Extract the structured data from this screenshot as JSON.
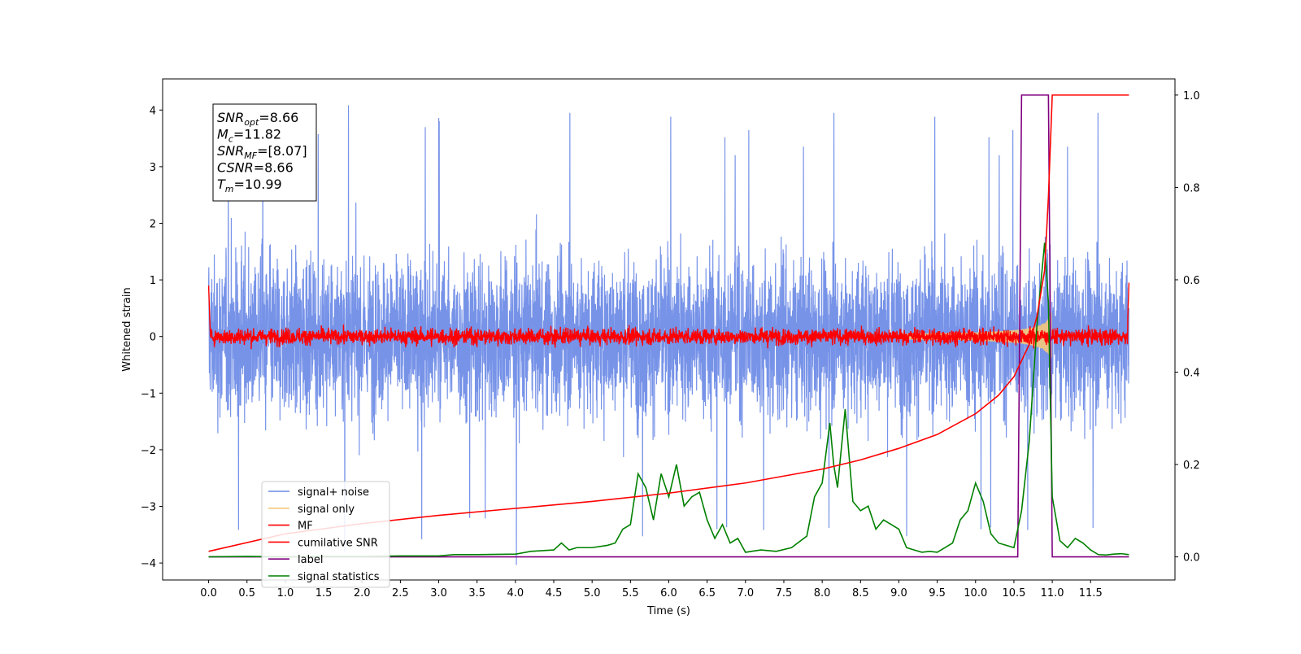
{
  "chart_data": {
    "type": "line",
    "xlabel": "Time (s)",
    "ylabel": "Whitened strain",
    "xlim": [
      -0.6,
      12.6
    ],
    "ylim": [
      -4.3,
      4.55
    ],
    "y2lim": [
      -0.05,
      1.035
    ],
    "x_ticks": [
      "0.0",
      "0.5",
      "1.0",
      "1.5",
      "2.0",
      "2.5",
      "3.0",
      "3.5",
      "4.0",
      "4.5",
      "5.0",
      "5.5",
      "6.0",
      "6.5",
      "7.0",
      "7.5",
      "8.0",
      "8.5",
      "9.0",
      "9.5",
      "10.0",
      "10.5",
      "11.0",
      "11.5"
    ],
    "y_ticks": [
      "4",
      "3",
      "2",
      "1",
      "0",
      "−1",
      "−2",
      "−3",
      "−4"
    ],
    "y2_ticks": [
      "1.0",
      "0.8",
      "0.6",
      "0.4",
      "0.2",
      "0.0"
    ],
    "legend_position": "lower-left",
    "grid": false,
    "annotation": [
      {
        "name": "SNR",
        "sub": "opt",
        "value": "=8.66"
      },
      {
        "name": "M",
        "sub": "c",
        "value": "=11.82"
      },
      {
        "name": "SNR",
        "sub": "MF",
        "value": "=[8.07]"
      },
      {
        "name": "CSNR",
        "sub": "",
        "value": "=8.66"
      },
      {
        "name": "T",
        "sub": "m",
        "value": "=10.99"
      }
    ],
    "series": [
      {
        "name": "signal+ noise",
        "color": "#6b8ae6",
        "axis": "left",
        "description": "noise band spanning approx -2.5 to +2.5, spikes to about 4.2 and -4.0, t from 0 to 12"
      },
      {
        "name": "signal only",
        "color": "#f5c87a",
        "axis": "left",
        "description": "chirp growing from near 0 to amplitude ~0.6 near t=10.95"
      },
      {
        "name": "MF",
        "color": "#ff0000",
        "axis": "left",
        "description": "matched filter output oscillating about 0 within ±0.35"
      },
      {
        "name": "cumilative SNR",
        "color": "#ff0000",
        "axis": "right",
        "x": [
          0.0,
          1.0,
          2.0,
          3.0,
          4.0,
          5.0,
          6.0,
          7.0,
          7.5,
          8.0,
          8.5,
          9.0,
          9.5,
          10.0,
          10.3,
          10.5,
          10.7,
          10.8,
          10.9,
          10.95,
          11.0,
          11.5,
          12.0
        ],
        "values": [
          0.012,
          0.05,
          0.072,
          0.09,
          0.105,
          0.12,
          0.138,
          0.16,
          0.175,
          0.19,
          0.21,
          0.235,
          0.265,
          0.31,
          0.35,
          0.39,
          0.46,
          0.52,
          0.62,
          0.78,
          1.0,
          1.0,
          1.0
        ]
      },
      {
        "name": "label",
        "color": "#800080",
        "axis": "right",
        "x": [
          0.0,
          10.55,
          10.6,
          10.95,
          11.0,
          12.0
        ],
        "values": [
          0.0,
          0.0,
          1.0,
          1.0,
          0.0,
          0.0
        ]
      },
      {
        "name": "signal statistics",
        "color": "#008000",
        "axis": "right",
        "x": [
          0.0,
          0.5,
          1.0,
          1.5,
          2.0,
          2.5,
          3.0,
          3.2,
          3.5,
          4.0,
          4.2,
          4.5,
          4.6,
          4.7,
          4.8,
          5.0,
          5.2,
          5.3,
          5.4,
          5.5,
          5.6,
          5.7,
          5.8,
          5.9,
          6.0,
          6.1,
          6.2,
          6.3,
          6.4,
          6.5,
          6.6,
          6.7,
          6.8,
          6.9,
          7.0,
          7.2,
          7.4,
          7.6,
          7.8,
          7.9,
          8.0,
          8.1,
          8.15,
          8.2,
          8.3,
          8.4,
          8.5,
          8.6,
          8.7,
          8.8,
          8.9,
          9.0,
          9.1,
          9.2,
          9.3,
          9.4,
          9.5,
          9.6,
          9.7,
          9.8,
          9.9,
          10.0,
          10.1,
          10.2,
          10.3,
          10.4,
          10.5,
          10.6,
          10.7,
          10.8,
          10.9,
          10.95,
          11.0,
          11.1,
          11.2,
          11.3,
          11.4,
          11.5,
          11.6,
          11.7,
          11.8,
          11.9,
          12.0
        ],
        "values": [
          0.0,
          0.001,
          0.0,
          0.001,
          0.001,
          0.002,
          0.002,
          0.005,
          0.005,
          0.006,
          0.012,
          0.015,
          0.03,
          0.015,
          0.02,
          0.02,
          0.025,
          0.03,
          0.06,
          0.07,
          0.18,
          0.15,
          0.08,
          0.18,
          0.13,
          0.2,
          0.11,
          0.13,
          0.14,
          0.08,
          0.04,
          0.07,
          0.03,
          0.04,
          0.01,
          0.015,
          0.012,
          0.02,
          0.045,
          0.13,
          0.16,
          0.29,
          0.2,
          0.15,
          0.32,
          0.12,
          0.1,
          0.11,
          0.06,
          0.08,
          0.07,
          0.06,
          0.02,
          0.015,
          0.01,
          0.012,
          0.01,
          0.02,
          0.03,
          0.08,
          0.1,
          0.16,
          0.12,
          0.05,
          0.03,
          0.025,
          0.02,
          0.1,
          0.25,
          0.5,
          0.68,
          0.55,
          0.13,
          0.035,
          0.02,
          0.04,
          0.03,
          0.015,
          0.005,
          0.004,
          0.006,
          0.007,
          0.005
        ]
      }
    ]
  }
}
